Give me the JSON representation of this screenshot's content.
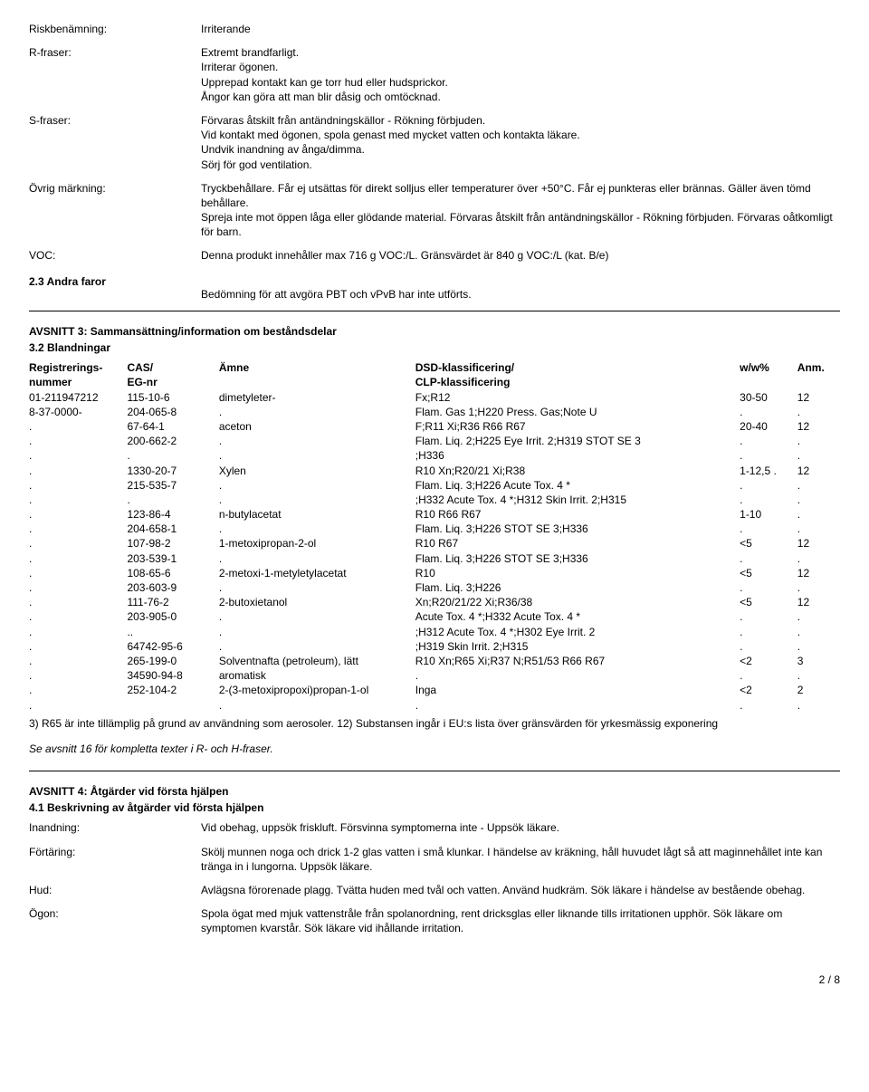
{
  "risk": {
    "label": "Riskbenämning:",
    "value": "Irriterande"
  },
  "rfraser": {
    "label": "R-fraser:",
    "lines": [
      "Extremt brandfarligt.",
      "Irriterar ögonen.",
      "Upprepad kontakt kan ge torr hud eller hudsprickor.",
      "Ångor kan göra att man blir dåsig och omtöcknad."
    ]
  },
  "sfraser": {
    "label": "S-fraser:",
    "lines": [
      "Förvaras åtskilt från antändningskällor - Rökning förbjuden.",
      "Vid kontakt med ögonen, spola genast med mycket vatten och kontakta läkare.",
      "Undvik inandning av ånga/dimma.",
      "Sörj för god ventilation."
    ]
  },
  "ovrig": {
    "label": "Övrig märkning:",
    "text": "Tryckbehållare. Får ej utsättas för direkt solljus eller temperaturer över +50°C. Får ej punkteras eller brännas. Gäller även tömd behållare.\nSpreja inte mot öppen låga eller glödande material. Förvaras åtskilt från antändningskällor - Rökning förbjuden. Förvaras oåtkomligt för barn."
  },
  "voc": {
    "label": "VOC:",
    "text": "Denna produkt innehåller max 716 g VOC:/L. Gränsvärdet är 840 g VOC:/L (kat. B/e)"
  },
  "andra_faror": {
    "heading": "2.3 Andra faror",
    "text": "Bedömning för att avgöra PBT och vPvB har inte utförts."
  },
  "avsnitt3": {
    "heading": "AVSNITT 3: Sammansättning/information om beståndsdelar",
    "sub": "3.2 Blandningar",
    "headers": {
      "reg1": "Registrerings-",
      "reg2": "nummer",
      "cas1": "CAS/",
      "cas2": "EG-nr",
      "amne": "Ämne",
      "dsd1": "DSD-klassificering/",
      "dsd2": "CLP-klassificering",
      "ww": "w/w%",
      "anm": "Anm."
    },
    "rows": [
      [
        "01-211947212",
        "115-10-6",
        "dimetyleter-",
        "Fx;R12",
        "30-50",
        "12"
      ],
      [
        "8-37-0000-",
        "204-065-8",
        ".",
        "Flam. Gas 1;H220 Press. Gas;Note U",
        ".",
        "."
      ],
      [
        ".",
        "67-64-1",
        "aceton",
        "F;R11 Xi;R36 R66 R67",
        "20-40",
        "12"
      ],
      [
        ".",
        "200-662-2",
        ".",
        "Flam. Liq. 2;H225 Eye Irrit. 2;H319 STOT SE 3",
        ".",
        "."
      ],
      [
        ".",
        ".",
        ".",
        ";H336",
        ".",
        "."
      ],
      [
        ".",
        "1330-20-7",
        "Xylen",
        "R10 Xn;R20/21 Xi;R38",
        "1-12,5 .",
        "12"
      ],
      [
        ".",
        "215-535-7",
        ".",
        "Flam. Liq. 3;H226 Acute Tox. 4 *",
        ".",
        "."
      ],
      [
        ".",
        ".",
        ".",
        ";H332 Acute Tox. 4 *;H312 Skin Irrit. 2;H315",
        ".",
        "."
      ],
      [
        ".",
        "123-86-4",
        "n-butylacetat",
        "R10 R66 R67",
        "1-10",
        "."
      ],
      [
        ".",
        "204-658-1",
        ".",
        "Flam. Liq. 3;H226 STOT SE 3;H336",
        ".",
        "."
      ],
      [
        ".",
        "107-98-2",
        "1-metoxipropan-2-ol",
        "R10 R67",
        "<5",
        "12"
      ],
      [
        ".",
        "203-539-1",
        ".",
        "Flam. Liq. 3;H226 STOT SE 3;H336",
        ".",
        "."
      ],
      [
        ".",
        "108-65-6",
        "2-metoxi-1-metyletylacetat",
        "R10",
        "<5",
        "12"
      ],
      [
        ".",
        "203-603-9",
        ".",
        "Flam. Liq. 3;H226",
        ".",
        "."
      ],
      [
        ".",
        "111-76-2",
        "2-butoxietanol",
        "Xn;R20/21/22 Xi;R36/38",
        "<5",
        "12"
      ],
      [
        ".",
        "203-905-0",
        ".",
        "Acute Tox. 4 *;H332 Acute Tox. 4 *",
        ".",
        "."
      ],
      [
        ".",
        "..",
        ".",
        ";H312 Acute Tox. 4 *;H302 Eye Irrit. 2",
        ".",
        "."
      ],
      [
        ".",
        "64742-95-6",
        ".",
        ";H319 Skin Irrit. 2;H315",
        ".",
        "."
      ],
      [
        ".",
        "265-199-0",
        "Solventnafta (petroleum), lätt",
        "R10 Xn;R65 Xi;R37 N;R51/53 R66 R67",
        "<2",
        "3"
      ],
      [
        ".",
        "34590-94-8",
        "aromatisk",
        ".",
        ".",
        "."
      ],
      [
        ".",
        "252-104-2",
        "2-(3-metoxipropoxi)propan-1-ol",
        "Inga",
        "<2",
        "2"
      ],
      [
        ".",
        "",
        ".",
        ".",
        ".",
        ".",
        "."
      ]
    ],
    "footnote": "3) R65 är inte tillämplig på grund av användning som aerosoler.  12) Substansen ingår i EU:s lista över gränsvärden för yrkesmässig exponering",
    "see_section": "Se avsnitt 16 för kompletta texter i R- och H-fraser."
  },
  "avsnitt4": {
    "heading": "AVSNITT 4: Åtgärder vid första hjälpen",
    "sub": "4.1 Beskrivning av åtgärder vid första hjälpen",
    "inandning": {
      "label": "Inandning:",
      "text": "Vid obehag, uppsök friskluft. Försvinna symptomerna inte - Uppsök läkare."
    },
    "fortaring": {
      "label": "Förtäring:",
      "text": "Skölj munnen noga och drick 1-2 glas vatten i små klunkar. I händelse av kräkning, håll huvudet lågt så att maginnehållet inte kan tränga in i lungorna. Uppsök läkare."
    },
    "hud": {
      "label": "Hud:",
      "text": "Avlägsna förorenade plagg.  Tvätta huden med tvål och vatten.  Använd hudkräm.  Sök läkare i händelse av bestående obehag."
    },
    "ogon": {
      "label": "Ögon:",
      "text": "Spola ögat med mjuk vattenstråle från spolanordning, rent dricksglas eller liknande tills irritationen upphör. Sök läkare om symptomen kvarstår. Sök läkare vid ihållande irritation."
    }
  },
  "page": "2 / 8"
}
